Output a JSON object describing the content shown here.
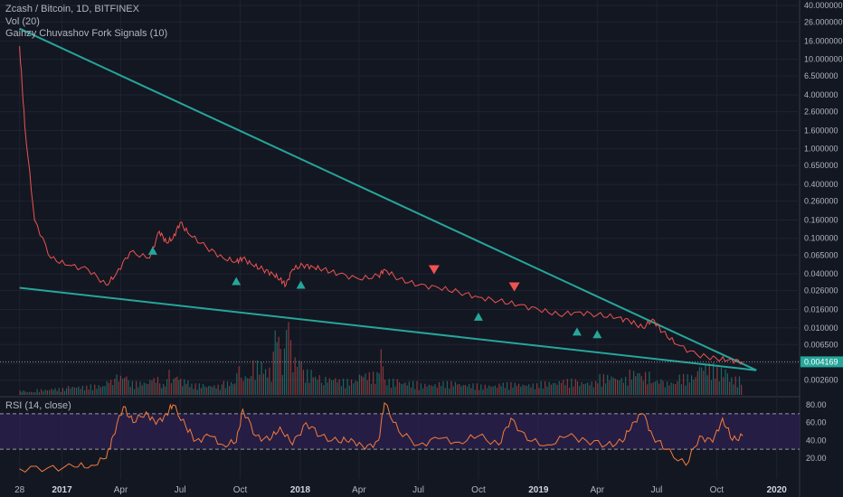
{
  "header": {
    "title": "Zcash / Bitcoin, 1D, BITFINEX",
    "vol_label": "Vol (20)",
    "signal_label": "Gainzy Chuvashov Fork Signals (10)",
    "rsi_label": "RSI (14, close)"
  },
  "colors": {
    "background": "#131722",
    "price_line": "#ef5350",
    "trendline": "#26a69a",
    "volume_up": "#26a69a",
    "volume_down": "#ef5350",
    "rsi_line": "#f57c3a",
    "rsi_band": "#2a1f4d",
    "buy_signal": "#26a69a",
    "sell_signal": "#ef5350"
  },
  "chart_data": [
    {
      "type": "line",
      "title": "Zcash / Bitcoin, 1D, BITFINEX",
      "scale": "log",
      "y_ticks": [
        "40.000000",
        "26.000000",
        "16.000000",
        "10.000000",
        "6.500000",
        "4.000000",
        "2.600000",
        "1.600000",
        "1.000000",
        "0.650000",
        "0.400000",
        "0.260000",
        "0.160000",
        "0.100000",
        "0.065000",
        "0.040000",
        "0.026000",
        "0.016000",
        "0.010000",
        "0.006500",
        "0.004000",
        "0.002600"
      ],
      "last_price": "0.004169",
      "x_ticks": [
        "28",
        "2017",
        "Apr",
        "Jul",
        "Oct",
        "2018",
        "Apr",
        "Jul",
        "Oct",
        "2019",
        "Apr",
        "Jul",
        "Oct",
        "2020"
      ],
      "x": [
        "2016-10-28",
        "2016-11-05",
        "2016-11-20",
        "2016-12-15",
        "2017-01-10",
        "2017-02-10",
        "2017-03-10",
        "2017-03-25",
        "2017-04-15",
        "2017-05-15",
        "2017-05-30",
        "2017-06-10",
        "2017-06-20",
        "2017-07-01",
        "2017-07-15",
        "2017-08-10",
        "2017-09-05",
        "2017-09-25",
        "2017-10-05",
        "2017-10-20",
        "2017-11-05",
        "2017-11-20",
        "2017-12-01",
        "2017-12-10",
        "2017-12-20",
        "2018-01-05",
        "2018-01-20",
        "2018-02-05",
        "2018-03-01",
        "2018-04-01",
        "2018-05-01",
        "2018-05-10",
        "2018-06-01",
        "2018-07-01",
        "2018-08-01",
        "2018-09-01",
        "2018-10-01",
        "2018-11-01",
        "2018-12-01",
        "2019-01-01",
        "2019-02-01",
        "2019-03-01",
        "2019-04-01",
        "2019-05-01",
        "2019-05-20",
        "2019-06-10",
        "2019-06-25",
        "2019-07-10",
        "2019-08-01",
        "2019-09-01",
        "2019-10-01",
        "2019-10-20",
        "2019-11-10"
      ],
      "series": [
        {
          "values": [
            14,
            1.8,
            0.16,
            0.06,
            0.05,
            0.045,
            0.03,
            0.04,
            0.07,
            0.06,
            0.12,
            0.09,
            0.1,
            0.15,
            0.11,
            0.08,
            0.06,
            0.055,
            0.06,
            0.05,
            0.045,
            0.04,
            0.035,
            0.03,
            0.045,
            0.05,
            0.048,
            0.045,
            0.04,
            0.035,
            0.038,
            0.045,
            0.035,
            0.03,
            0.028,
            0.025,
            0.022,
            0.02,
            0.018,
            0.016,
            0.014,
            0.015,
            0.014,
            0.013,
            0.012,
            0.01,
            0.0125,
            0.009,
            0.0065,
            0.005,
            0.0045,
            0.0044,
            0.004169
          ]
        }
      ],
      "volume": [
        3,
        4,
        3,
        5,
        6,
        8,
        9,
        14,
        18,
        12,
        16,
        10,
        22,
        18,
        14,
        10,
        9,
        12,
        26,
        18,
        30,
        24,
        60,
        40,
        70,
        34,
        22,
        18,
        16,
        14,
        20,
        40,
        14,
        12,
        10,
        12,
        10,
        9,
        11,
        10,
        12,
        14,
        12,
        18,
        16,
        22,
        20,
        14,
        12,
        18,
        28,
        24,
        16
      ],
      "signals": [
        {
          "type": "buy",
          "x": "2017-05-20"
        },
        {
          "type": "buy",
          "x": "2017-09-25"
        },
        {
          "type": "buy",
          "x": "2018-01-02"
        },
        {
          "type": "sell",
          "x": "2018-07-25"
        },
        {
          "type": "buy",
          "x": "2018-10-01"
        },
        {
          "type": "sell",
          "x": "2018-11-25"
        },
        {
          "type": "buy",
          "x": "2019-03-01"
        },
        {
          "type": "buy",
          "x": "2019-04-01"
        }
      ],
      "trendlines": [
        {
          "name": "upper",
          "from": {
            "x": "2016-10-28",
            "y": 22
          },
          "to": {
            "x": "2019-11-10",
            "y": 0.0036
          }
        },
        {
          "name": "lower",
          "from": {
            "x": "2016-10-28",
            "y": 0.028
          },
          "to": {
            "x": "2019-11-10",
            "y": 0.0036
          }
        }
      ]
    },
    {
      "type": "line",
      "title": "RSI (14, close)",
      "ylim": [
        0,
        100
      ],
      "y_ticks": [
        "80.00",
        "60.00",
        "40.00",
        "20.00"
      ],
      "bands": [
        70,
        30
      ],
      "x": [
        "2016-10-28",
        "2016-12-10",
        "2017-01-20",
        "2017-02-15",
        "2017-03-10",
        "2017-03-20",
        "2017-04-05",
        "2017-04-20",
        "2017-05-10",
        "2017-05-25",
        "2017-06-10",
        "2017-06-20",
        "2017-07-10",
        "2017-07-25",
        "2017-08-15",
        "2017-09-05",
        "2017-09-25",
        "2017-10-05",
        "2017-10-25",
        "2017-11-15",
        "2017-12-01",
        "2017-12-20",
        "2018-01-10",
        "2018-02-01",
        "2018-03-01",
        "2018-03-20",
        "2018-04-10",
        "2018-05-01",
        "2018-05-10",
        "2018-06-01",
        "2018-07-01",
        "2018-08-01",
        "2018-09-01",
        "2018-10-01",
        "2018-11-01",
        "2018-11-20",
        "2018-12-15",
        "2019-01-15",
        "2019-02-15",
        "2019-03-15",
        "2019-04-15",
        "2019-05-10",
        "2019-05-25",
        "2019-06-10",
        "2019-06-25",
        "2019-07-15",
        "2019-08-15",
        "2019-09-05",
        "2019-09-25",
        "2019-10-10",
        "2019-10-25",
        "2019-11-10"
      ],
      "series": [
        {
          "values": [
            8,
            9,
            10,
            12,
            20,
            45,
            78,
            60,
            72,
            58,
            70,
            80,
            55,
            40,
            45,
            35,
            38,
            75,
            45,
            40,
            55,
            35,
            60,
            45,
            38,
            42,
            30,
            40,
            82,
            50,
            35,
            42,
            38,
            45,
            35,
            65,
            40,
            35,
            45,
            40,
            35,
            38,
            60,
            70,
            45,
            30,
            12,
            45,
            38,
            65,
            40,
            45
          ]
        }
      ]
    }
  ]
}
